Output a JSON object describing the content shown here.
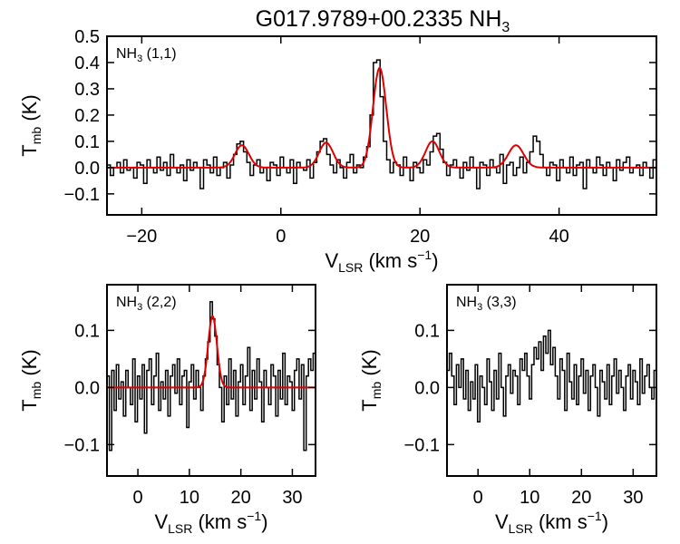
{
  "chart_data": {
    "title": "G017.9789+00.2335 NH",
    "title_sub": "3",
    "panels": [
      {
        "id": "p11",
        "type": "line",
        "label": "NH",
        "label_sub": "3",
        "label_tail": " (1,1)",
        "xlim": [
          -25,
          54
        ],
        "ylim": [
          -0.18,
          0.5
        ],
        "xticks": [
          -20,
          0,
          20,
          40
        ],
        "xticklabels": [
          "−20",
          "0",
          "20",
          "40"
        ],
        "yticks": [
          -0.1,
          0.0,
          0.1,
          0.2,
          0.3,
          0.4,
          0.5
        ],
        "yticklabels": [
          "−0.1",
          "0.0",
          "0.1",
          "0.2",
          "0.3",
          "0.4",
          "0.5"
        ],
        "xlabel": "V",
        "xlabel_sub": "LSR",
        "xlabel_tail": " (km s",
        "xlabel_sup": "−1",
        "xlabel_end": ")",
        "ylabel": "T",
        "ylabel_sub": "mb",
        "ylabel_tail": " (K)",
        "fit_components": [
          {
            "center": -5.6,
            "amp": 0.085,
            "sigma": 1.0
          },
          {
            "center": 6.5,
            "amp": 0.095,
            "sigma": 1.0
          },
          {
            "center": 14.2,
            "amp": 0.38,
            "sigma": 0.95
          },
          {
            "center": 21.8,
            "amp": 0.1,
            "sigma": 1.0
          },
          {
            "center": 33.8,
            "amp": 0.085,
            "sigma": 1.1
          }
        ],
        "spectrum_y": [
          0.01,
          -0.03,
          0.0,
          0.02,
          -0.02,
          0.03,
          -0.01,
          0.0,
          -0.04,
          0.02,
          0.01,
          -0.06,
          0.03,
          0.0,
          -0.02,
          0.04,
          -0.01,
          0.02,
          -0.03,
          0.05,
          0.0,
          -0.02,
          0.01,
          -0.05,
          0.03,
          -0.01,
          0.02,
          0.0,
          -0.08,
          0.03,
          0.01,
          -0.02,
          0.04,
          -0.03,
          0.0,
          0.02,
          -0.04,
          0.01,
          0.05,
          0.09,
          0.1,
          0.06,
          0.02,
          -0.03,
          0.01,
          0.03,
          -0.02,
          0.0,
          -0.05,
          0.02,
          0.01,
          -0.03,
          0.04,
          0.0,
          -0.02,
          0.03,
          -0.06,
          0.02,
          0.0,
          -0.01,
          0.03,
          -0.04,
          0.02,
          0.06,
          0.1,
          0.11,
          0.05,
          0.01,
          -0.02,
          0.03,
          0.0,
          -0.04,
          0.02,
          0.05,
          -0.02,
          0.01,
          0.0,
          0.04,
          0.08,
          0.2,
          0.4,
          0.41,
          0.27,
          0.1,
          0.03,
          -0.02,
          0.02,
          0.01,
          -0.03,
          0.04,
          0.0,
          -0.05,
          0.02,
          0.0,
          -0.02,
          0.03,
          0.01,
          0.06,
          0.12,
          0.13,
          0.07,
          0.02,
          -0.03,
          0.01,
          0.03,
          0.0,
          -0.04,
          0.02,
          -0.01,
          0.04,
          0.0,
          -0.08,
          0.02,
          0.01,
          -0.03,
          0.03,
          0.0,
          -0.02,
          0.05,
          -0.06,
          0.01,
          0.02,
          -0.03,
          0.0,
          0.04,
          -0.02,
          0.02,
          0.06,
          0.12,
          0.1,
          0.05,
          0.0,
          -0.03,
          0.02,
          0.01,
          -0.05,
          0.03,
          0.0,
          -0.02,
          0.04,
          -0.03,
          0.01,
          0.02,
          -0.08,
          0.03,
          0.0,
          -0.02,
          0.04,
          0.01,
          -0.03,
          0.02,
          0.0,
          -0.05,
          0.03,
          -0.01,
          0.02,
          0.04,
          -0.02,
          0.0,
          0.01,
          -0.03,
          0.02,
          0.0,
          -0.04,
          0.03
        ]
      },
      {
        "id": "p22",
        "type": "line",
        "label": "NH",
        "label_sub": "3",
        "label_tail": " (2,2)",
        "xlim": [
          -6,
          34.5
        ],
        "ylim": [
          -0.155,
          0.18
        ],
        "xticks": [
          0,
          10,
          20,
          30
        ],
        "xticklabels": [
          "0",
          "10",
          "20",
          "30"
        ],
        "yticks": [
          -0.1,
          0.0,
          0.1
        ],
        "yticklabels": [
          "−0.1",
          "0.0",
          "0.1"
        ],
        "xlabel": "V",
        "xlabel_sub": "LSR",
        "xlabel_tail": " (km s",
        "xlabel_sup": "−1",
        "xlabel_end": ")",
        "ylabel": "T",
        "ylabel_sub": "mb",
        "ylabel_tail": " (K)",
        "fit_components": [
          {
            "center": 14.5,
            "amp": 0.125,
            "sigma": 0.85
          }
        ],
        "spectrum_y": [
          0.02,
          -0.11,
          0.03,
          -0.04,
          0.04,
          -0.02,
          0.01,
          -0.05,
          0.03,
          0.0,
          -0.03,
          0.05,
          -0.06,
          0.02,
          -0.02,
          0.04,
          -0.08,
          0.03,
          0.05,
          -0.03,
          0.02,
          0.06,
          -0.04,
          0.01,
          -0.02,
          0.03,
          -0.05,
          0.02,
          0.04,
          -0.01,
          0.05,
          -0.03,
          0.02,
          0.03,
          -0.07,
          0.01,
          0.04,
          -0.02,
          0.03,
          0.0,
          -0.04,
          0.02,
          0.05,
          0.08,
          0.15,
          0.12,
          0.09,
          0.04,
          0.0,
          -0.06,
          0.02,
          -0.03,
          0.05,
          -0.02,
          0.03,
          -0.05,
          0.01,
          0.04,
          -0.03,
          0.02,
          0.07,
          -0.04,
          0.03,
          -0.02,
          0.05,
          0.01,
          -0.06,
          0.03,
          0.0,
          -0.03,
          0.04,
          0.02,
          -0.05,
          0.03,
          -0.02,
          0.06,
          -0.03,
          0.02,
          0.01,
          -0.04,
          0.03,
          0.05,
          -0.02,
          0.04,
          -0.11,
          0.02,
          0.05,
          0.03,
          0.06
        ]
      },
      {
        "id": "p33",
        "type": "line",
        "label": "NH",
        "label_sub": "3",
        "label_tail": " (3,3)",
        "xlim": [
          -6,
          34.5
        ],
        "ylim": [
          -0.155,
          0.18
        ],
        "xticks": [
          0,
          10,
          20,
          30
        ],
        "xticklabels": [
          "0",
          "10",
          "20",
          "30"
        ],
        "yticks": [
          -0.1,
          0.0,
          0.1
        ],
        "yticklabels": [
          "−0.1",
          "0.0",
          "0.1"
        ],
        "xlabel": "V",
        "xlabel_sub": "LSR",
        "xlabel_tail": " (km s",
        "xlabel_sup": "−1",
        "xlabel_end": ")",
        "ylabel": "T",
        "ylabel_sub": "mb",
        "ylabel_tail": " (K)",
        "fit_components": [],
        "spectrum_y": [
          0.03,
          0.06,
          0.02,
          -0.03,
          0.04,
          0.0,
          0.05,
          -0.02,
          0.03,
          -0.04,
          0.01,
          -0.02,
          0.04,
          -0.06,
          0.02,
          0.0,
          -0.03,
          0.05,
          0.01,
          -0.04,
          0.03,
          -0.02,
          0.06,
          0.0,
          -0.05,
          0.02,
          0.04,
          -0.01,
          0.03,
          0.02,
          -0.03,
          0.05,
          0.03,
          0.06,
          0.02,
          -0.02,
          0.04,
          0.07,
          0.05,
          0.08,
          0.03,
          0.09,
          0.06,
          0.1,
          0.04,
          0.07,
          0.02,
          -0.02,
          0.05,
          0.03,
          -0.04,
          0.06,
          0.01,
          -0.02,
          0.04,
          -0.03,
          0.02,
          0.05,
          -0.01,
          0.03,
          -0.04,
          0.02,
          0.04,
          0.0,
          -0.05,
          0.03,
          0.01,
          -0.02,
          0.04,
          -0.03,
          0.02,
          0.05,
          -0.01,
          0.03,
          0.0,
          -0.04,
          0.02,
          0.04,
          -0.02,
          0.03,
          0.01,
          -0.03,
          0.05,
          -0.01,
          0.02,
          0.04,
          0.0,
          -0.02,
          0.03
        ]
      }
    ]
  }
}
